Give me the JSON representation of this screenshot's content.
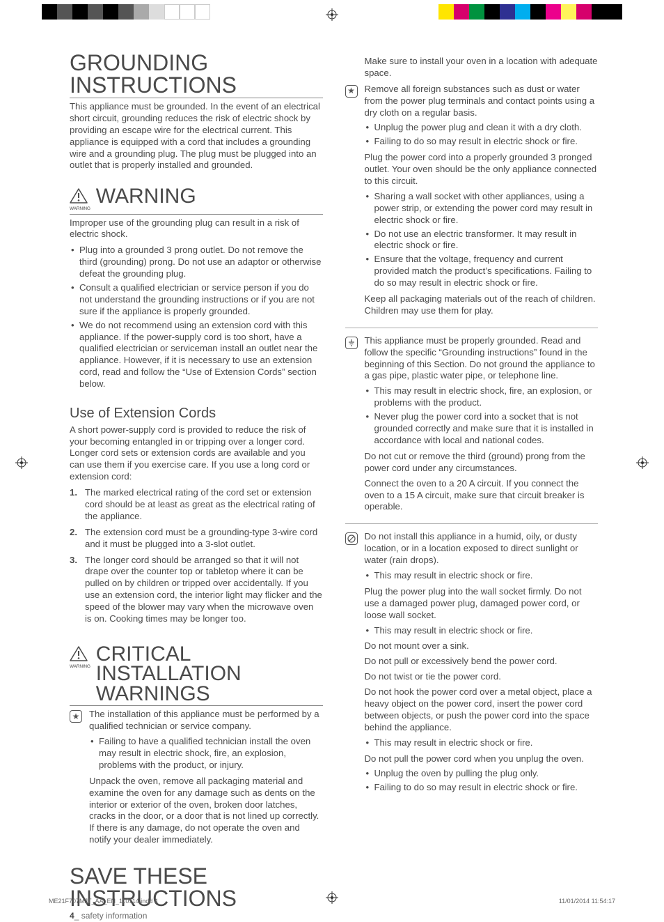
{
  "headings": {
    "grounding": "GROUNDING INSTRUCTIONS",
    "warning": "WARNING",
    "warning_small": "WARNING",
    "ext_cords": "Use of Extension Cords",
    "critical": "CRITICAL INSTALLATION WARNINGS",
    "save": "SAVE THESE INSTRUCTIONS"
  },
  "left": {
    "grounding_p": "This appliance must be grounded. In the event of an electrical short circuit, grounding reduces the risk of electric shock by providing an escape wire for the electrical current. This appliance is equipped with a cord that includes a grounding wire and a grounding plug. The plug must be plugged into an outlet that is properly installed and grounded.",
    "warning_intro": "Improper use of the grounding plug can result in a risk of electric shock.",
    "warning_bul": [
      "Plug into a grounded 3 prong outlet. Do not remove the third (grounding) prong. Do not use an adaptor or otherwise defeat the grounding plug.",
      "Consult a qualified electrician or service person if you do not understand the grounding instructions or if you are not sure if the appliance is properly grounded.",
      "We do not recommend using an extension cord with this appliance. If the power-supply cord is too short, have a qualified electrician or serviceman install an outlet near the appliance. However, if it is necessary to use an extension cord, read and follow the “Use of Extension Cords” section below."
    ],
    "ext_intro": "A short power-supply cord is provided to reduce the risk of your becoming entangled in or tripping over a longer cord. Longer cord sets or extension cords are available and you can use them if you exercise care. If you use a long cord or extension cord:",
    "ext_num": [
      "The marked electrical rating of the cord set or extension cord should be at least as great as the electrical rating of the appliance.",
      "The extension cord must be a grounding-type 3-wire cord and it must be plugged into a 3-slot outlet.",
      "The longer cord should be arranged so that it will not drape over the counter top or tabletop where it can be pulled on by children or tripped over accidentally. If you use an extension cord, the interior light may flicker and the speed of the blower may vary when the microwave oven is on. Cooking times may be longer too."
    ],
    "install_b1_p": "The installation of this appliance must be performed by a qualified technician or service company.",
    "install_b1_bul": [
      "Failing to have a qualified technician install the oven may result in electric shock, fire, an explosion, problems with the product, or injury."
    ],
    "install_b1_p2": "Unpack the oven, remove all packaging material and examine the oven for any damage such as dents on the interior or exterior of the oven, broken door latches, cracks in the door, or a door that is not lined up correctly. If there is any damage, do not operate the oven and notify your dealer immediately."
  },
  "right": {
    "top_loose": "Make sure to install your oven in a location with adequate space.",
    "star_b1_p": "Remove all foreign substances such as dust or water from the power plug terminals and contact points using a dry cloth on a regular basis.",
    "star_b1_bul": [
      "Unplug the power plug and clean it with a dry cloth.",
      "Failing to do so may result in electric shock or fire."
    ],
    "star_b1_p2": "Plug the power cord into a properly grounded 3 pronged outlet. Your oven should be the only appliance connected to this circuit.",
    "star_b1_bul2": [
      "Sharing a wall socket with other appliances, using a power strip, or extending the power cord may result in electric shock or fire.",
      "Do not use an electric transformer. It may result in electric shock or fire.",
      "Ensure that the voltage, frequency and current provided match the product’s specifications. Failing to do so may result in electric shock or fire."
    ],
    "star_b1_p3": "Keep all packaging materials out of the reach of children. Children may use them for play.",
    "ground_b_p": "This appliance must be properly grounded. Read and follow the specific “Grounding instructions” found in the beginning of this Section. Do not ground the appliance to a gas pipe, plastic water pipe, or telephone line.",
    "ground_b_bul": [
      "This may result in electric shock, fire, an explosion, or problems with the product.",
      "Never plug the power cord into a socket that is not grounded correctly and make sure that it is installed in accordance with local and national codes."
    ],
    "ground_b_p2": "Do not cut or remove the third (ground) prong from the power cord under any circumstances.",
    "ground_b_p3": "Connect the oven to a 20 A circuit. If you connect the oven to a 15 A circuit, make sure that circuit breaker is operable.",
    "noc_b_p": "Do not install this appliance in a humid, oily, or dusty location, or in a location exposed to direct sunlight or water (rain drops).",
    "noc_b_bul": [
      "This may result in electric shock or fire."
    ],
    "noc_plug_p": "Plug the power plug into the wall socket firmly. Do not use a damaged power plug, damaged power cord, or loose wall socket.",
    "noc_plug_bul": [
      "This may result in electric shock or fire."
    ],
    "noc_sink": "Do not mount over a sink.",
    "noc_bend": "Do not pull or excessively bend the power cord.",
    "noc_twist": "Do not twist or tie the power cord.",
    "noc_hook_p": "Do not hook the power cord over a metal object, place a heavy object on the power cord, insert the power cord between objects, or push the power cord into the space behind the appliance.",
    "noc_hook_bul": [
      "This may result in electric shock or fire."
    ],
    "noc_pull_p": "Do not pull the power cord when you unplug the oven.",
    "noc_pull_bul": [
      "Unplug the oven by pulling the plug only.",
      "Failing to do so may result in electric shock or fire."
    ]
  },
  "footer": {
    "page_num": "4",
    "page_label": "_ safety information"
  },
  "slug": {
    "file": "ME21F707MJT_AA_EN_110114.indd   4",
    "date": "11/01/2014   11:54:17"
  },
  "colors": {
    "text": "#4a4a4a",
    "rule": "#888888"
  }
}
